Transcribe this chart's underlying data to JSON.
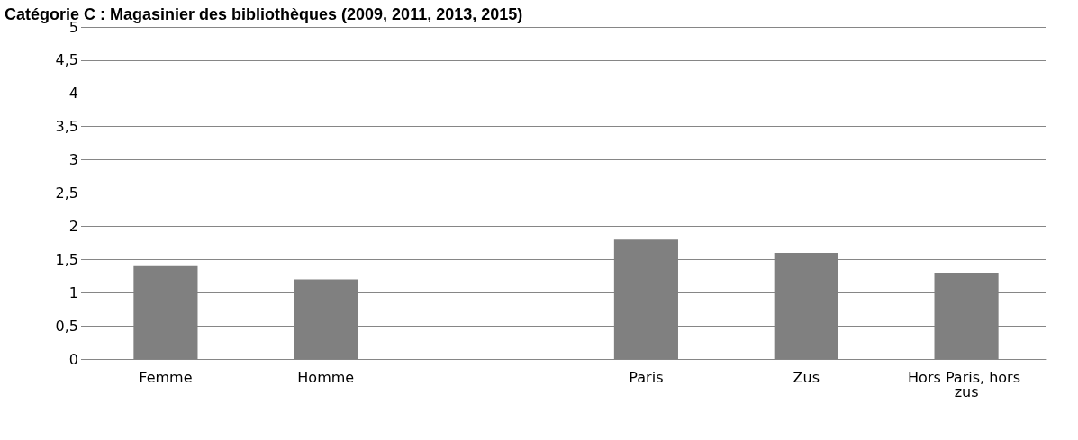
{
  "chart_data": {
    "type": "bar",
    "title": "Catégorie C : Magasinier des bibliothèques (2009, 2011, 2013, 2015)",
    "categories": [
      "Femme",
      "Homme",
      null,
      "Paris",
      "Zus",
      "Hors Paris, hors zus"
    ],
    "values": [
      1.4,
      1.2,
      null,
      1.8,
      1.6,
      1.3
    ],
    "color": "#808080",
    "ylim": [
      0,
      5
    ],
    "yticks": [
      0,
      {
        "value": 0.5,
        "label": "0,5"
      },
      1,
      {
        "value": 1.5,
        "label": "1,5"
      },
      2,
      {
        "value": 2.5,
        "label": "2,5"
      },
      3,
      {
        "value": 3.5,
        "label": "3,5"
      },
      4,
      {
        "value": 4.5,
        "label": "4,5"
      },
      5
    ],
    "grid": "y"
  }
}
